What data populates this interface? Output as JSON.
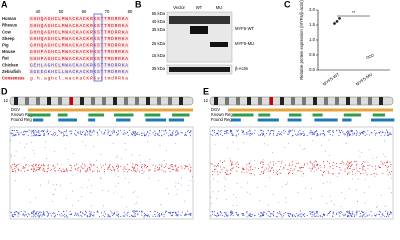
{
  "panel_labels": [
    "A",
    "B",
    "C",
    "D",
    "E"
  ],
  "alignment": {
    "positions": [
      "40",
      "50",
      "60",
      "70",
      "80"
    ],
    "rows": [
      {
        "species": "Human",
        "sequence": "GHHQAGHCLMWACKACKRKSTTMDRRKA"
      },
      {
        "species": "Rhesus",
        "sequence": "GHHQAGHCLMWACKACKRKSTTMDRRKA"
      },
      {
        "species": "Cow",
        "sequence": "GHHQAGHCLMWACKACKRKSTTMDRRKA"
      },
      {
        "species": "Sheep",
        "sequence": "GHHQAGHCLMWACKACKRKSTTMDRRKA"
      },
      {
        "species": "Pig",
        "sequence": "GHHQAGHCLMWACKACKRKSTTMDRRKA"
      },
      {
        "species": "Mouse",
        "sequence": "GHHPAGHCLMWACKACKRKSTTMDRRKA"
      },
      {
        "species": "Rat",
        "sequence": "GHHPAGHCLMWACKACKRKSTTMDRRKA"
      },
      {
        "species": "Chicken",
        "sequence": "GEHLAGHCLMWACKACKRKSTTMDRRKA"
      },
      {
        "species": "Zebrafish",
        "sequence": "SGEEGKHCLLWACKACKRKSTTMDRRKA"
      },
      {
        "species": "Consensus",
        "sequence": "g.h.aghcl.wacKaCKRKsttmdRRka"
      }
    ]
  },
  "blot": {
    "lanes": [
      "Vector",
      "WT",
      "MU"
    ],
    "markers": [
      "55 kDa",
      "40 kDa",
      "35 kDa",
      "25 kDa",
      "15 kDa",
      "35 kDa"
    ],
    "bands": [
      "MYF5-WT",
      "MYF5-MU",
      "β-Actin"
    ]
  },
  "chart_data": {
    "type": "dot",
    "y_label": "Relative protein expression (MYF5/β-actin)",
    "categories": [
      "MYF5-WT",
      "MYF5-MU"
    ],
    "points": [
      [
        1.55,
        1.62,
        1.72
      ],
      [
        0.42,
        0.45,
        0.49
      ]
    ],
    "ylim": [
      0,
      2
    ],
    "yticks": [
      {
        "value": 0,
        "label": "0.0"
      },
      0.5,
      {
        "value": 1,
        "label": "1.0"
      },
      1.5,
      {
        "value": 2,
        "label": "2.0"
      }
    ],
    "significance": "**"
  },
  "cnv": [
    {
      "chromosome": "12",
      "tracks": [
        "DGV",
        "Known Reg",
        "Found Reg"
      ]
    },
    {
      "chromosome": "12",
      "tracks": [
        "DGV",
        "Known Reg",
        "Found Reg"
      ]
    }
  ]
}
